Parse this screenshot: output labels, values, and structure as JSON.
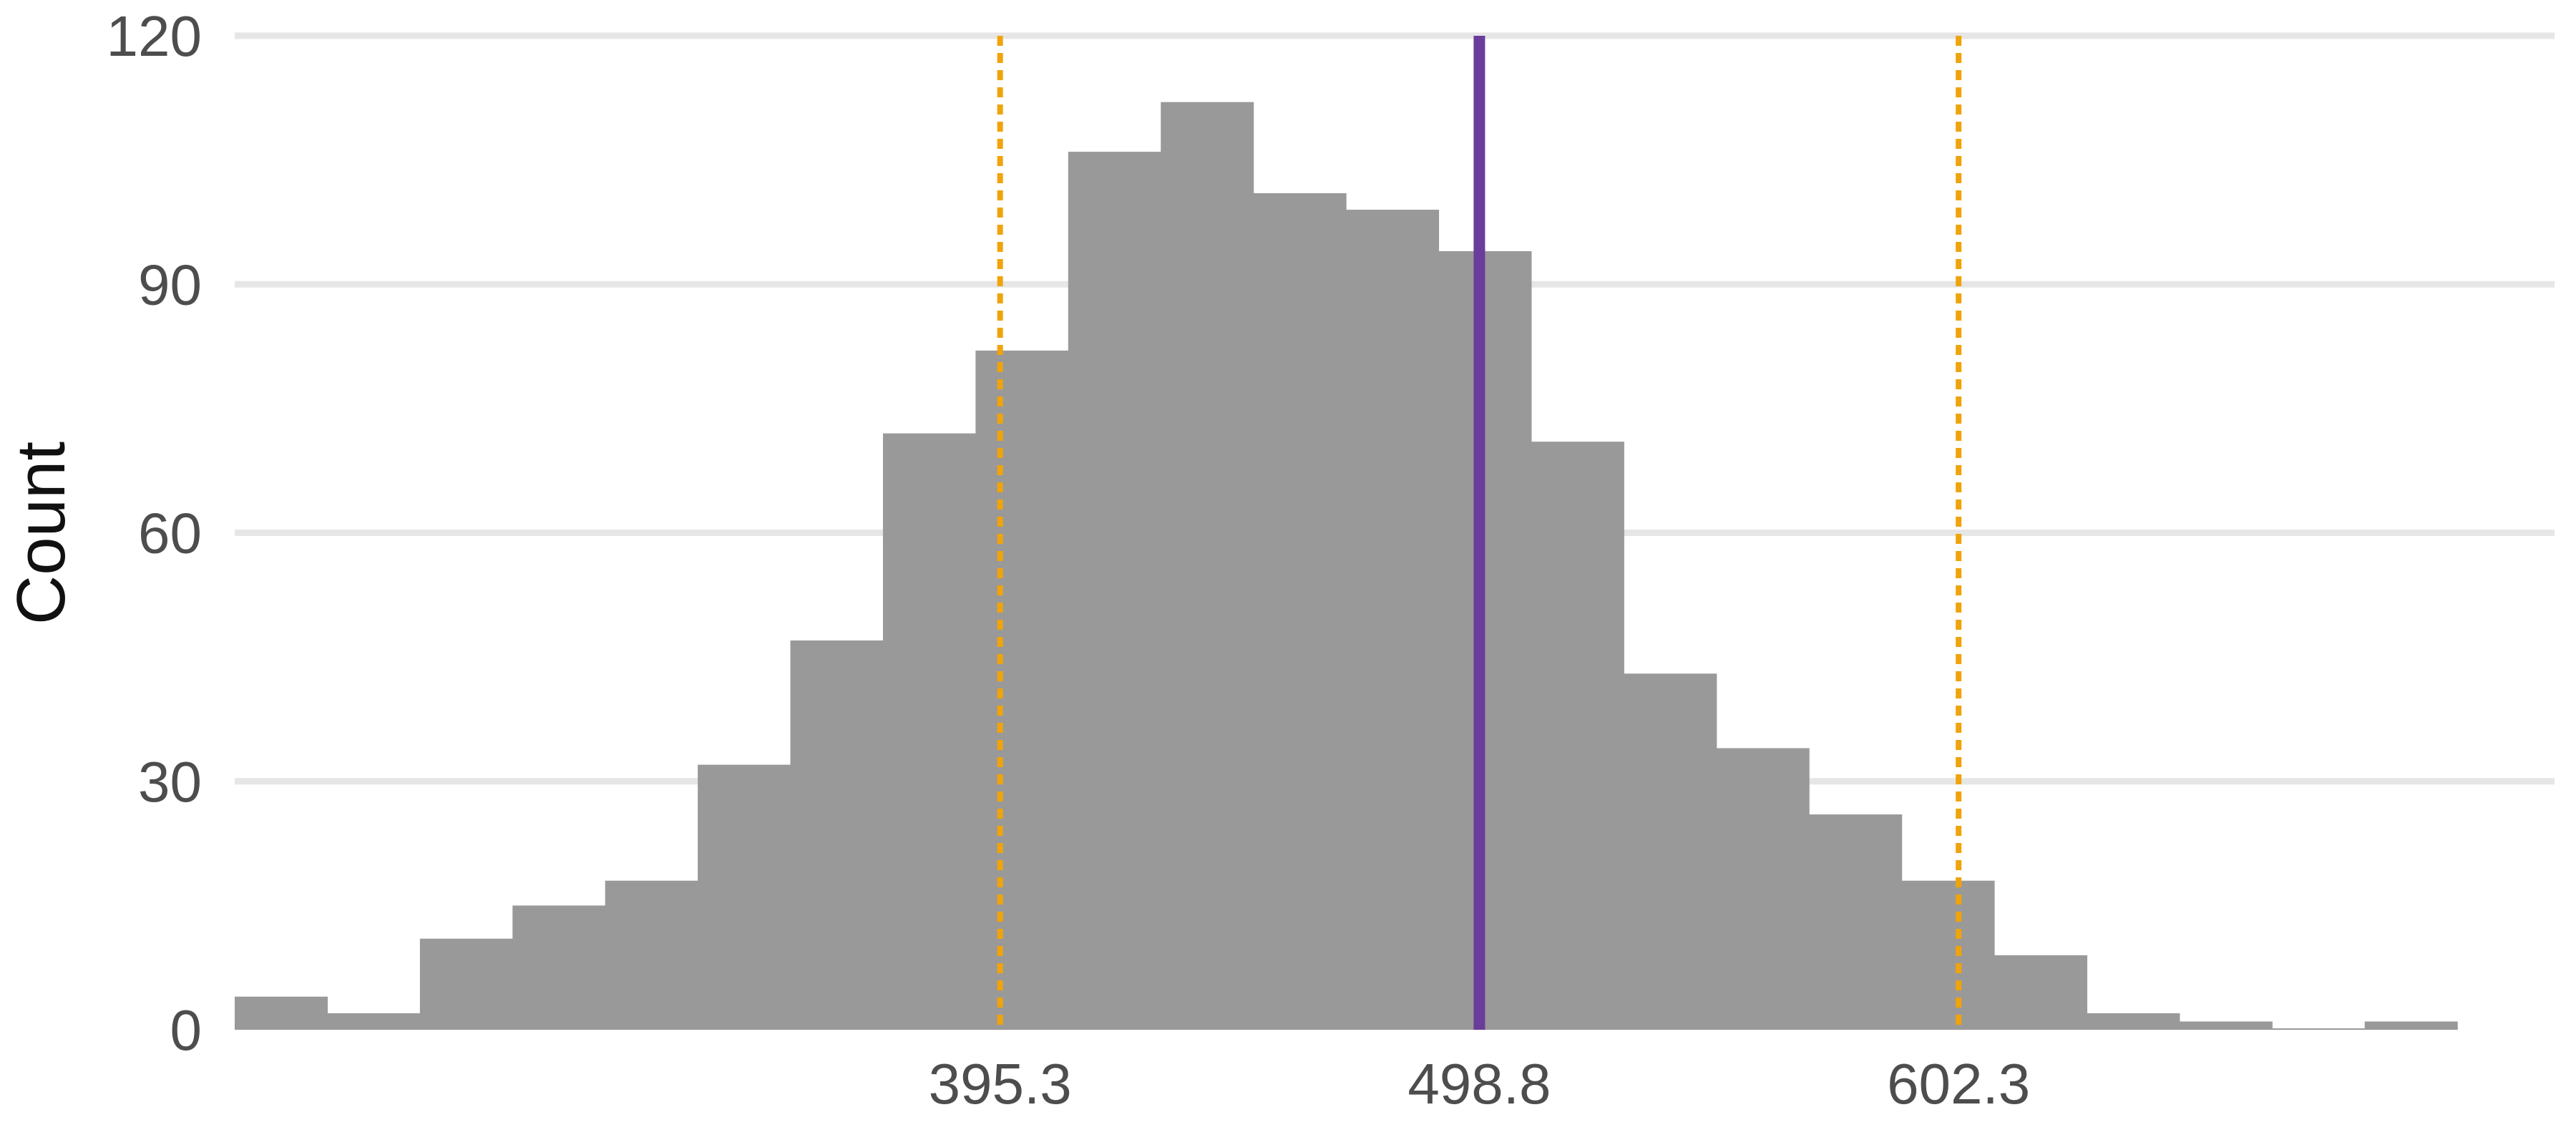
{
  "chart_data": {
    "type": "bar",
    "subtype": "histogram",
    "title": "",
    "xlabel": "",
    "ylabel": "Count",
    "xlim": [
      230,
      731
    ],
    "ylim": [
      0,
      120
    ],
    "y_ticks": [
      0,
      30,
      60,
      90,
      120
    ],
    "x_tick_labels": [
      "395.3",
      "498.8",
      "602.3"
    ],
    "x_ticks": [
      395.3,
      498.8,
      602.3
    ],
    "grid": "horizontal",
    "bin_width": 20,
    "bins": [
      {
        "x0": 230,
        "x1": 250,
        "count": 4
      },
      {
        "x0": 250,
        "x1": 270,
        "count": 2
      },
      {
        "x0": 270,
        "x1": 290,
        "count": 11
      },
      {
        "x0": 290,
        "x1": 310,
        "count": 15
      },
      {
        "x0": 310,
        "x1": 330,
        "count": 18
      },
      {
        "x0": 330,
        "x1": 350,
        "count": 32
      },
      {
        "x0": 350,
        "x1": 370,
        "count": 47
      },
      {
        "x0": 370,
        "x1": 390,
        "count": 72
      },
      {
        "x0": 390,
        "x1": 410,
        "count": 82
      },
      {
        "x0": 410,
        "x1": 430,
        "count": 106
      },
      {
        "x0": 430,
        "x1": 450,
        "count": 112
      },
      {
        "x0": 450,
        "x1": 470,
        "count": 101
      },
      {
        "x0": 470,
        "x1": 490,
        "count": 99
      },
      {
        "x0": 490,
        "x1": 510,
        "count": 94
      },
      {
        "x0": 510,
        "x1": 530,
        "count": 71
      },
      {
        "x0": 530,
        "x1": 550,
        "count": 43
      },
      {
        "x0": 550,
        "x1": 570,
        "count": 34
      },
      {
        "x0": 570,
        "x1": 590,
        "count": 26
      },
      {
        "x0": 590,
        "x1": 610,
        "count": 18
      },
      {
        "x0": 610,
        "x1": 630,
        "count": 9
      },
      {
        "x0": 630,
        "x1": 650,
        "count": 2
      },
      {
        "x0": 650,
        "x1": 670,
        "count": 1
      },
      {
        "x0": 670,
        "x1": 690,
        "count": 0
      },
      {
        "x0": 690,
        "x1": 710,
        "count": 1
      }
    ],
    "reference_lines": [
      {
        "x": 395.3,
        "style": "dotted",
        "color": "#f0a30a"
      },
      {
        "x": 498.8,
        "style": "solid",
        "color": "#6a3d9a"
      },
      {
        "x": 602.3,
        "style": "dotted",
        "color": "#f0a30a"
      }
    ],
    "colors": {
      "bars": "#999999",
      "grid": "#e6e6e6",
      "tick_text": "#4d4d4d",
      "axis_title": "#111111"
    }
  }
}
